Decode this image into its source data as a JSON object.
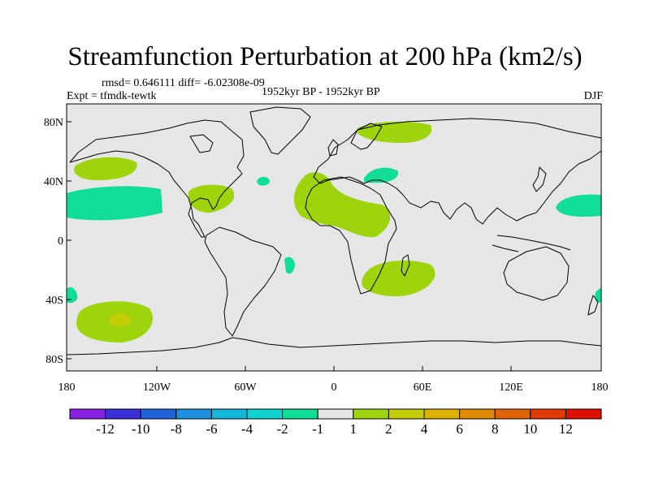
{
  "title": "Streamfunction Perturbation at 200 hPa (km2/s)",
  "stats": "rmsd= 0.646111 diff= -6.02308e-09",
  "experiment": "Expt = tfmdk-tewtk",
  "period": "1952kyr BP - 1952kyr BP",
  "season": "DJF",
  "axes": {
    "lat_labels": [
      "80N",
      "40N",
      "0",
      "40S",
      "80S"
    ],
    "lon_labels": [
      "180",
      "120W",
      "60W",
      "0",
      "60E",
      "120E",
      "180"
    ]
  },
  "colorbar": {
    "colors": [
      "#8a1fe6",
      "#3a2fd6",
      "#1f64d8",
      "#1c8fe0",
      "#12b8dc",
      "#0ed3d0",
      "#10dd96",
      "#e6e6e6",
      "#9ed40c",
      "#c3cc04",
      "#dcb000",
      "#e08a00",
      "#e06200",
      "#e03a00",
      "#e01000"
    ],
    "labels": [
      "-12",
      "-10",
      "-8",
      "-6",
      "-4",
      "-2",
      "-1",
      "1",
      "2",
      "4",
      "6",
      "8",
      "10",
      "12"
    ]
  },
  "colors": {
    "background": "#e6e6e6",
    "positive_1_2": "#9ed40c",
    "positive_2_4": "#c3cc04",
    "negative_1_2": "#10dd96"
  }
}
